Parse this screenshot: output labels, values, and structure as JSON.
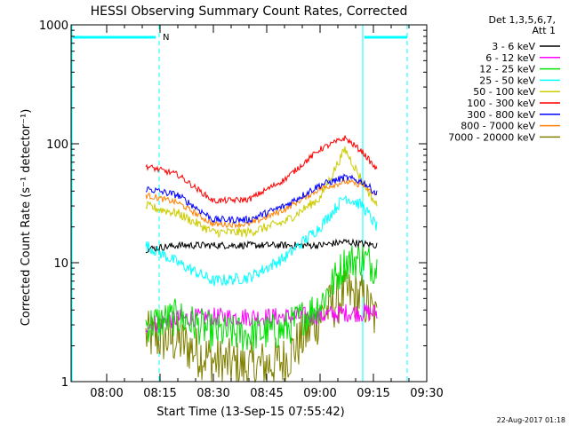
{
  "chart_data": {
    "type": "line",
    "title": "HESSI Observing Summary Count Rates, Corrected",
    "xlabel": "Start Time (13-Sep-15 07:55:42)",
    "ylabel": "Corrected Count Rate (s⁻¹ detector⁻¹)",
    "yscale": "log",
    "ylim": [
      1,
      1000
    ],
    "xlim_minutes_after_0755": [
      -5,
      95
    ],
    "x_ticks": [
      "08:00",
      "08:15",
      "08:30",
      "08:45",
      "09:00",
      "09:15",
      "09:30"
    ],
    "y_ticks": [
      "1",
      "10",
      "100",
      "1000"
    ],
    "legend_header": [
      "Det 1,3,5,6,7,",
      "Att 1"
    ],
    "legend_position": "right",
    "timestamp": "22-Aug-2017 01:18",
    "night_marker_label": "N",
    "data_window_hhmm": [
      "08:11",
      "09:16"
    ],
    "series": [
      {
        "name": "3 - 6 keV",
        "color": "#000000",
        "x": [
          "08:11",
          "08:20",
          "08:30",
          "08:40",
          "08:50",
          "09:00",
          "09:07",
          "09:16"
        ],
        "y": [
          13,
          14,
          14,
          14,
          14,
          14,
          15,
          14
        ]
      },
      {
        "name": "6 - 12 keV",
        "color": "#ff00ff",
        "x": [
          "08:11",
          "08:20",
          "08:30",
          "08:40",
          "08:50",
          "09:00",
          "09:07",
          "09:16"
        ],
        "y": [
          3,
          3.4,
          3.5,
          3.5,
          3.5,
          3.6,
          3.8,
          3.8
        ]
      },
      {
        "name": "12 - 25 keV",
        "color": "#00e000",
        "x": [
          "08:11",
          "08:20",
          "08:30",
          "08:40",
          "08:50",
          "09:00",
          "09:07",
          "09:12",
          "09:16"
        ],
        "y": [
          3,
          3.5,
          2.6,
          2.5,
          2.7,
          4.5,
          10,
          11,
          9
        ]
      },
      {
        "name": "25 - 50 keV",
        "color": "#00ffff",
        "x": [
          "08:11",
          "08:20",
          "08:30",
          "08:40",
          "08:50",
          "09:00",
          "09:07",
          "09:12",
          "09:16"
        ],
        "y": [
          14,
          10,
          7,
          7.5,
          11,
          20,
          36,
          30,
          20
        ]
      },
      {
        "name": "50 - 100 keV",
        "color": "#cccc00",
        "x": [
          "08:11",
          "08:20",
          "08:30",
          "08:40",
          "08:50",
          "09:00",
          "09:07",
          "09:12",
          "09:16"
        ],
        "y": [
          30,
          26,
          18,
          18,
          22,
          35,
          90,
          48,
          30
        ]
      },
      {
        "name": "100 - 300 keV",
        "color": "#ff0000",
        "x": [
          "08:11",
          "08:20",
          "08:30",
          "08:40",
          "08:50",
          "09:00",
          "09:07",
          "09:12",
          "09:16"
        ],
        "y": [
          65,
          55,
          33,
          34,
          50,
          90,
          112,
          85,
          60
        ]
      },
      {
        "name": "300 - 800 keV",
        "color": "#0000ff",
        "x": [
          "08:11",
          "08:20",
          "08:30",
          "08:40",
          "08:50",
          "09:00",
          "09:07",
          "09:12",
          "09:16"
        ],
        "y": [
          42,
          37,
          23,
          23,
          30,
          45,
          52,
          48,
          38
        ]
      },
      {
        "name": "800 - 7000 keV",
        "color": "#ff8000",
        "x": [
          "08:11",
          "08:20",
          "08:30",
          "08:40",
          "08:50",
          "09:00",
          "09:07",
          "09:12",
          "09:16"
        ],
        "y": [
          37,
          32,
          21,
          21,
          28,
          42,
          48,
          45,
          36
        ]
      },
      {
        "name": "7000 - 20000 keV",
        "color": "#808000",
        "x": [
          "08:11",
          "08:20",
          "08:30",
          "08:40",
          "08:50",
          "09:00",
          "09:07",
          "09:12",
          "09:16"
        ],
        "y": [
          2.4,
          2.2,
          1.5,
          1.3,
          1.5,
          3.5,
          5.5,
          5,
          3.2
        ]
      }
    ]
  },
  "overlay": {
    "marker_color": "#00ffff"
  }
}
